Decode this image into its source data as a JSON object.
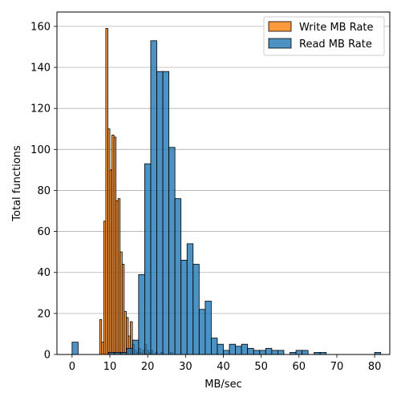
{
  "chart_data": {
    "type": "bar",
    "title": "",
    "xlabel": "MB/sec",
    "ylabel": "Total functions",
    "xlim": [
      -4,
      84
    ],
    "ylim": [
      0,
      167
    ],
    "x_ticks": [
      0,
      10,
      20,
      30,
      40,
      50,
      60,
      70,
      80
    ],
    "y_ticks": [
      0,
      20,
      40,
      60,
      80,
      100,
      120,
      140,
      160
    ],
    "grid": "horizontal",
    "legend_position": "top-right",
    "series": [
      {
        "name": "Write MB Rate",
        "color": "#ff7f0e",
        "bin_width": 0.54,
        "bins": [
          {
            "x": 7.3,
            "y": 17
          },
          {
            "x": 7.84,
            "y": 6
          },
          {
            "x": 8.38,
            "y": 65
          },
          {
            "x": 8.92,
            "y": 159
          },
          {
            "x": 9.46,
            "y": 110
          },
          {
            "x": 10.0,
            "y": 90
          },
          {
            "x": 10.54,
            "y": 107
          },
          {
            "x": 11.08,
            "y": 106
          },
          {
            "x": 11.62,
            "y": 75
          },
          {
            "x": 12.16,
            "y": 76
          },
          {
            "x": 12.7,
            "y": 50
          },
          {
            "x": 13.24,
            "y": 44
          },
          {
            "x": 13.78,
            "y": 21
          },
          {
            "x": 14.32,
            "y": 18
          },
          {
            "x": 14.86,
            "y": 9
          },
          {
            "x": 15.4,
            "y": 16
          },
          {
            "x": 15.94,
            "y": 5
          },
          {
            "x": 16.48,
            "y": 2
          },
          {
            "x": 17.02,
            "y": 1
          },
          {
            "x": 17.56,
            "y": 3
          },
          {
            "x": 18.1,
            "y": 1
          },
          {
            "x": 18.64,
            "y": 2
          },
          {
            "x": 19.18,
            "y": 5
          },
          {
            "x": 19.72,
            "y": 2
          },
          {
            "x": 20.26,
            "y": 1
          },
          {
            "x": 20.8,
            "y": 2
          },
          {
            "x": 22.0,
            "y": 1
          },
          {
            "x": 23.5,
            "y": 1
          },
          {
            "x": 26.0,
            "y": 1
          }
        ]
      },
      {
        "name": "Read MB Rate",
        "color": "#1f77b4",
        "bin_width": 1.6,
        "bins": [
          {
            "x": 0.0,
            "y": 6
          },
          {
            "x": 9.6,
            "y": 1
          },
          {
            "x": 11.2,
            "y": 1
          },
          {
            "x": 12.8,
            "y": 1
          },
          {
            "x": 14.4,
            "y": 3
          },
          {
            "x": 16.0,
            "y": 7
          },
          {
            "x": 17.6,
            "y": 39
          },
          {
            "x": 19.2,
            "y": 93
          },
          {
            "x": 20.8,
            "y": 153
          },
          {
            "x": 22.4,
            "y": 138
          },
          {
            "x": 24.0,
            "y": 138
          },
          {
            "x": 25.6,
            "y": 101
          },
          {
            "x": 27.2,
            "y": 76
          },
          {
            "x": 28.8,
            "y": 46
          },
          {
            "x": 30.4,
            "y": 54
          },
          {
            "x": 32.0,
            "y": 44
          },
          {
            "x": 33.6,
            "y": 22
          },
          {
            "x": 35.2,
            "y": 26
          },
          {
            "x": 36.8,
            "y": 8
          },
          {
            "x": 38.4,
            "y": 5
          },
          {
            "x": 40.0,
            "y": 2
          },
          {
            "x": 41.6,
            "y": 5
          },
          {
            "x": 43.2,
            "y": 4
          },
          {
            "x": 44.8,
            "y": 5
          },
          {
            "x": 46.4,
            "y": 3
          },
          {
            "x": 48.0,
            "y": 2
          },
          {
            "x": 49.6,
            "y": 2
          },
          {
            "x": 51.2,
            "y": 3
          },
          {
            "x": 52.8,
            "y": 2
          },
          {
            "x": 54.4,
            "y": 2
          },
          {
            "x": 57.6,
            "y": 1
          },
          {
            "x": 59.2,
            "y": 2
          },
          {
            "x": 60.8,
            "y": 2
          },
          {
            "x": 64.0,
            "y": 1
          },
          {
            "x": 65.6,
            "y": 1
          },
          {
            "x": 80.0,
            "y": 1
          }
        ]
      }
    ]
  }
}
